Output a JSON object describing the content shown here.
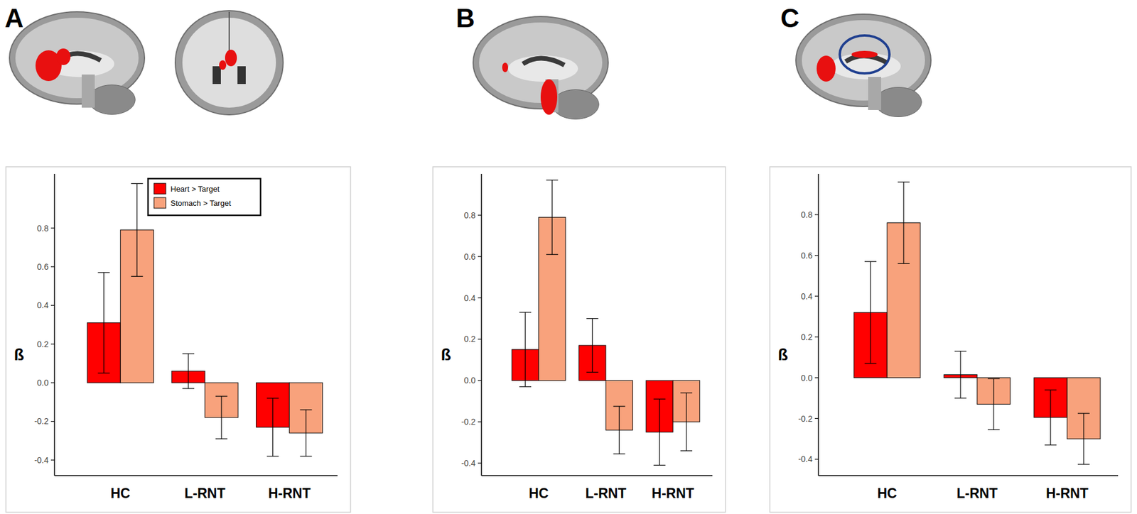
{
  "chart_data": [
    {
      "type": "bar",
      "title": "A",
      "y_label": "ß",
      "categories": [
        "HC",
        "L-RNT",
        "H-RNT"
      ],
      "series": [
        {
          "name": "Heart > Target",
          "color": "#ff0000",
          "values": [
            0.31,
            0.06,
            -0.23
          ],
          "errors": [
            0.26,
            0.09,
            0.15
          ]
        },
        {
          "name": "Stomach > Target",
          "color": "#f8a27c",
          "values": [
            0.79,
            -0.18,
            -0.26
          ],
          "errors": [
            0.24,
            0.11,
            0.12
          ]
        }
      ],
      "ylim": [
        -0.48,
        1.08
      ],
      "yticks": [
        -0.4,
        -0.2,
        {
          "value": 0,
          "label": "0.0"
        },
        0.2,
        0.4,
        0.6,
        0.8
      ],
      "legend": "top-right",
      "grid": false
    },
    {
      "type": "bar",
      "title": "B",
      "y_label": "ß",
      "categories": [
        "HC",
        "L-RNT",
        "H-RNT"
      ],
      "series": [
        {
          "color": "#ff0000",
          "values": [
            0.15,
            0.17,
            -0.25
          ],
          "errors": [
            0.18,
            0.13,
            0.16
          ]
        },
        {
          "color": "#f8a27c",
          "values": [
            0.79,
            -0.24,
            -0.2
          ],
          "errors": [
            0.18,
            0.115,
            0.14
          ]
        }
      ],
      "ylim": [
        -0.46,
        1.0
      ],
      "yticks": [
        -0.4,
        -0.2,
        {
          "value": 0,
          "label": "0.0"
        },
        0.2,
        0.4,
        0.6,
        0.8
      ],
      "grid": false
    },
    {
      "type": "bar",
      "title": "C",
      "y_label": "ß",
      "categories": [
        "HC",
        "L-RNT",
        "H-RNT"
      ],
      "series": [
        {
          "color": "#ff0000",
          "values": [
            0.32,
            0.015,
            -0.195
          ],
          "errors": [
            0.25,
            0.115,
            0.135
          ]
        },
        {
          "color": "#f8a27c",
          "values": [
            0.76,
            -0.13,
            -0.3
          ],
          "errors": [
            0.2,
            0.125,
            0.125
          ]
        }
      ],
      "ylim": [
        -0.48,
        1.0
      ],
      "yticks": [
        -0.4,
        -0.2,
        {
          "value": 0,
          "label": "0.0"
        },
        0.2,
        0.4,
        0.6,
        0.8
      ],
      "grid": false
    }
  ]
}
